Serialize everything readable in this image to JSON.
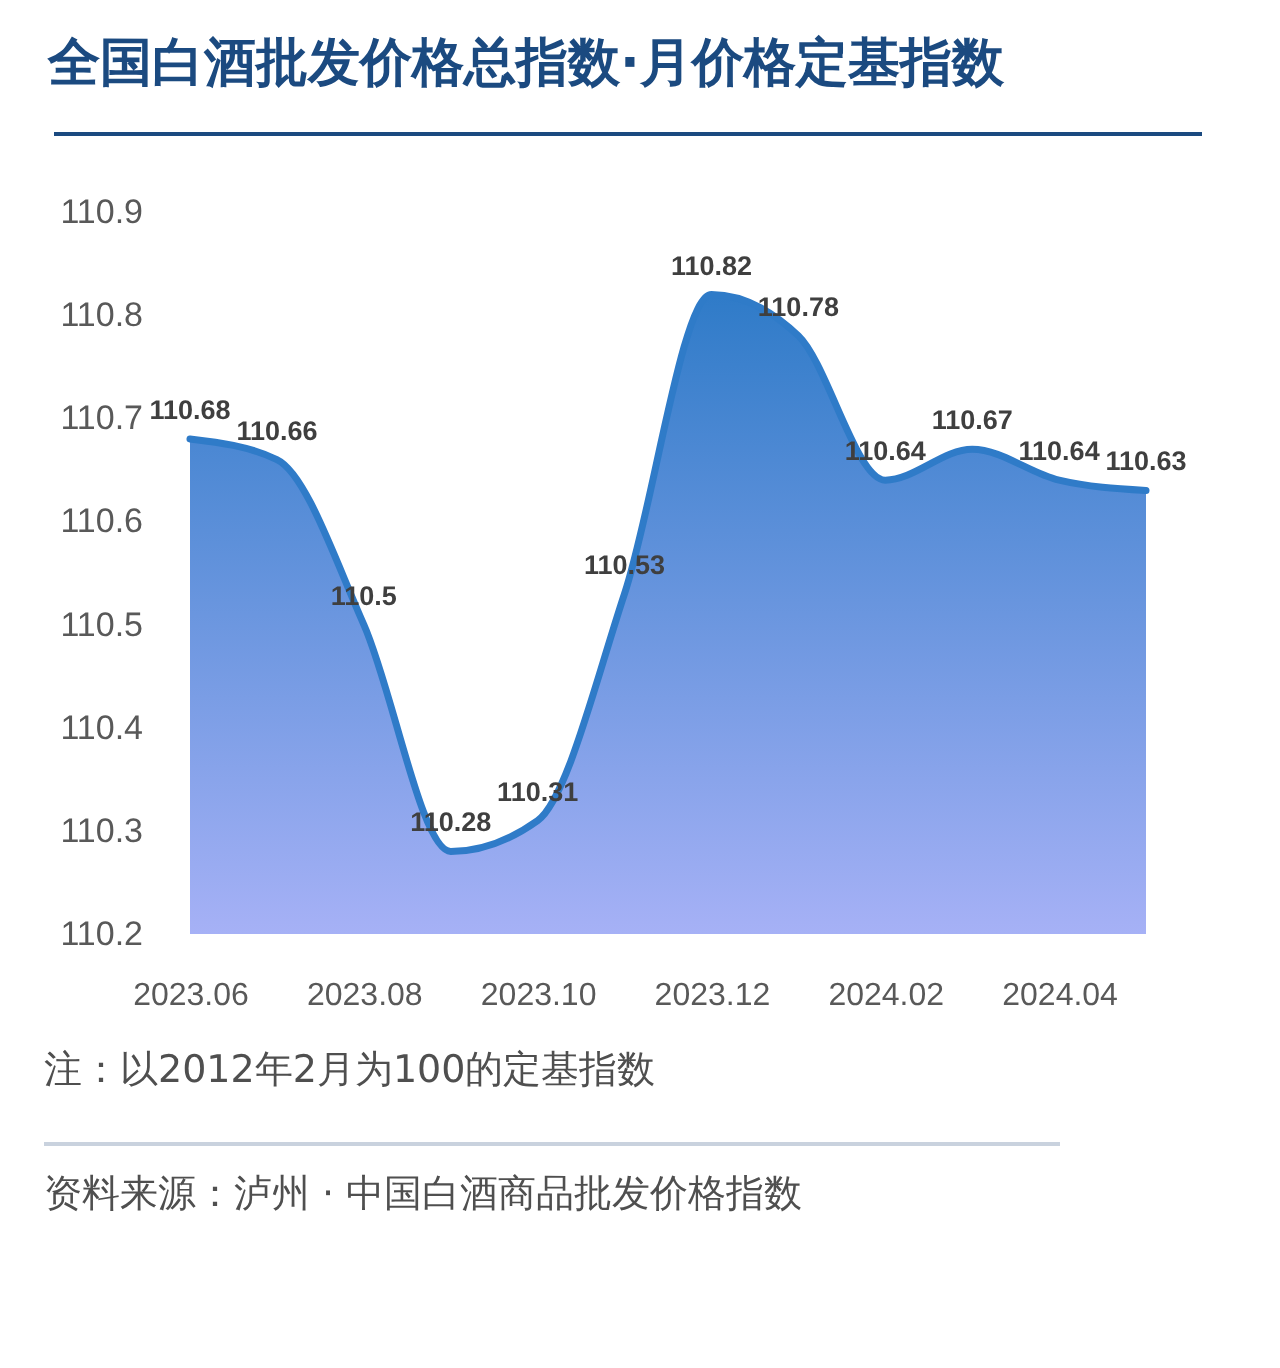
{
  "chart_data": {
    "type": "area",
    "title": "全国白酒批发价格总指数·月价格定基指数",
    "categories": [
      "2023.06",
      null,
      "2023.08",
      null,
      "2023.10",
      null,
      "2023.12",
      null,
      "2024.02",
      null,
      "2024.04",
      null
    ],
    "values": [
      110.68,
      110.66,
      110.5,
      110.28,
      110.31,
      110.53,
      110.82,
      110.78,
      110.64,
      110.67,
      110.64,
      110.63
    ],
    "color": "#2f7bc8",
    "ylim": [
      110.2,
      110.9
    ],
    "yticks": [
      110.2,
      110.3,
      110.4,
      110.5,
      110.6,
      110.7,
      110.8,
      110.9
    ],
    "data_labels": true,
    "annotations": [
      "注：以2012年2月为100的定基指数",
      "资料来源：泸州 · 中国白酒商品批发价格指数"
    ]
  }
}
